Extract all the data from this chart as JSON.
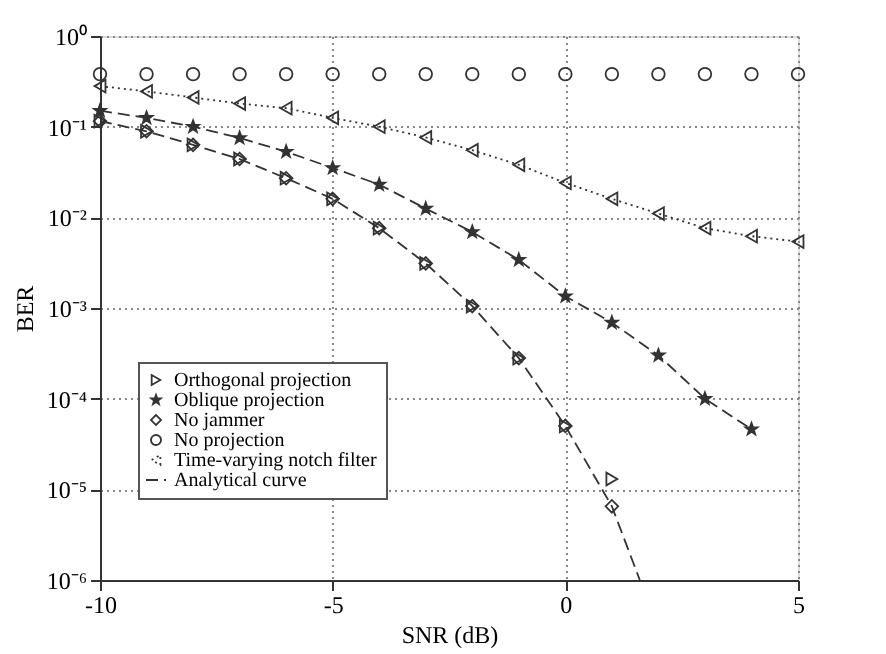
{
  "chart_data": {
    "type": "scatter",
    "xlabel": "SNR (dB)",
    "ylabel": "BER",
    "log": "y",
    "grid": true,
    "legend": "bottom left",
    "xlim": [
      -10,
      5
    ],
    "xticks": [
      -10,
      -5,
      0,
      5
    ],
    "ylim": [
      1e-06,
      1
    ],
    "yticks": [
      {
        "value": 1e-06,
        "label": "10⁻⁶"
      },
      {
        "value": 1e-05,
        "label": "10⁻⁵"
      },
      {
        "value": 0.0001,
        "label": "10⁻⁴"
      },
      {
        "value": 0.001,
        "label": "10⁻³"
      },
      {
        "value": 0.01,
        "label": "10⁻²"
      },
      {
        "value": 0.1,
        "label": "10⁻¹"
      },
      {
        "value": 1,
        "label": "10⁰"
      }
    ],
    "series": [
      {
        "name": "Orthogonal projection",
        "marker": "triangle-right",
        "color": "#333333",
        "x": [
          -10,
          -9,
          -8,
          -7,
          -6,
          -5,
          -4,
          -3,
          -2,
          -1,
          0,
          1
        ],
        "values": [
          0.115,
          0.089,
          0.063,
          0.044,
          0.027,
          0.016,
          0.0076,
          0.0031,
          0.00105,
          0.00028,
          5e-05,
          1.3e-05
        ]
      },
      {
        "name": "Oblique projection",
        "marker": "star",
        "color": "#333333",
        "x": [
          -10,
          -9,
          -8,
          -7,
          -6,
          -5,
          -4,
          -3,
          -2,
          -1,
          0,
          1,
          2,
          3,
          4
        ],
        "values": [
          0.15,
          0.125,
          0.1,
          0.075,
          0.053,
          0.035,
          0.023,
          0.0125,
          0.0069,
          0.0034,
          0.00135,
          0.00069,
          0.0003,
          0.0001,
          4.6e-05
        ]
      },
      {
        "name": "No jammer",
        "marker": "diamond",
        "color": "#333333",
        "x": [
          -10,
          -9,
          -8,
          -7,
          -6,
          -5,
          -4,
          -3,
          -2,
          -1,
          0,
          1
        ],
        "values": [
          0.115,
          0.089,
          0.063,
          0.044,
          0.027,
          0.016,
          0.0076,
          0.0031,
          0.00105,
          0.00028,
          5e-05,
          6.5e-06
        ]
      },
      {
        "name": "No projection",
        "marker": "circle",
        "color": "#333333",
        "x": [
          -10,
          -9,
          -8,
          -7,
          -6,
          -5,
          -4,
          -3,
          -2,
          -1,
          0,
          1,
          2,
          3,
          4,
          5
        ],
        "values": [
          0.38,
          0.38,
          0.38,
          0.38,
          0.38,
          0.38,
          0.38,
          0.38,
          0.38,
          0.38,
          0.38,
          0.38,
          0.38,
          0.38,
          0.38,
          0.38
        ]
      },
      {
        "name": "Time-varying notch filter",
        "type": "line",
        "marker": "triangle-left",
        "line_style": "dotted",
        "color": "#333333",
        "x": [
          -10,
          -9,
          -8,
          -7,
          -6,
          -5,
          -4,
          -3,
          -2,
          -1,
          0,
          1,
          2,
          3,
          4,
          5
        ],
        "values": [
          0.28,
          0.245,
          0.21,
          0.18,
          0.16,
          0.125,
          0.1,
          0.076,
          0.055,
          0.038,
          0.024,
          0.016,
          0.011,
          0.0076,
          0.0062,
          0.0054
        ]
      },
      {
        "name": "Analytical curve",
        "type": "line",
        "marker": "none",
        "line_style": "dashed",
        "color": "#333333",
        "x": [
          -10,
          -9,
          -8,
          -7,
          -6,
          -5,
          -4,
          -3,
          -2,
          -1,
          0,
          1,
          1.6
        ],
        "values": [
          0.115,
          0.089,
          0.063,
          0.044,
          0.027,
          0.016,
          0.0076,
          0.0031,
          0.00105,
          0.00028,
          5e-05,
          6.5e-06,
          1e-06
        ]
      },
      {
        "type": "line",
        "marker": "none",
        "line_style": "dashed",
        "color": "#333333",
        "x": [
          -10,
          -9,
          -8,
          -7,
          -6,
          -5,
          -4,
          -3,
          -2,
          -1,
          0,
          1,
          2,
          3,
          4
        ],
        "values": [
          0.15,
          0.125,
          0.1,
          0.075,
          0.053,
          0.035,
          0.023,
          0.0125,
          0.0069,
          0.0034,
          0.00135,
          0.00069,
          0.0003,
          0.0001,
          4.6e-05
        ]
      }
    ]
  }
}
